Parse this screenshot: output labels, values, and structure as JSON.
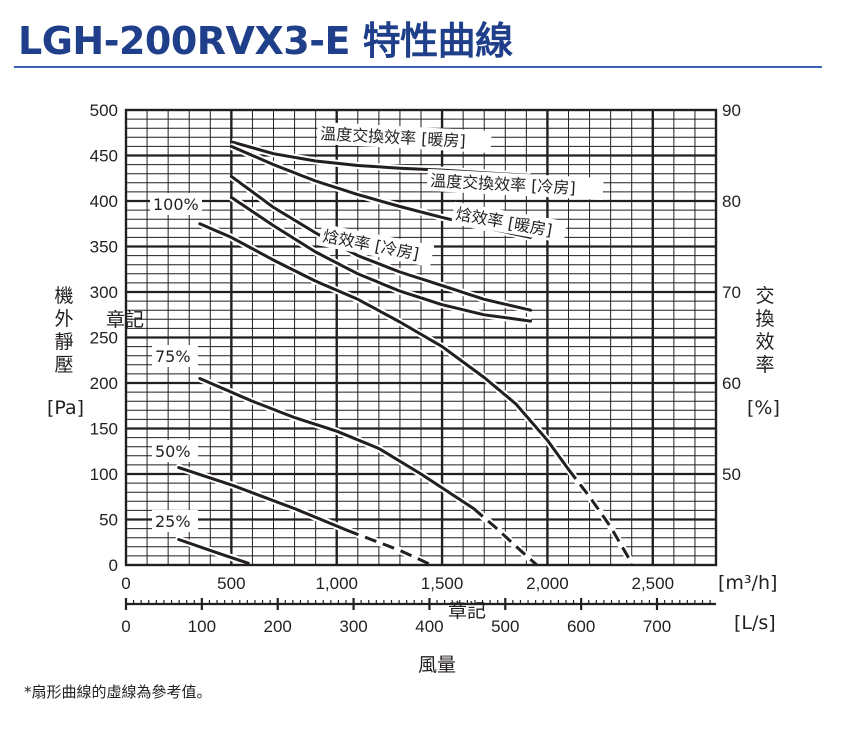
{
  "title": "LGH-200RVX3-E 特性曲線",
  "footnote": "*扇形曲線的虛線為參考值。",
  "stamps": [
    "章記",
    "章記"
  ],
  "chart_data": {
    "type": "line",
    "title": "LGH-200RVX3-E 特性曲線",
    "xlabel": "風量",
    "x_unit_primary": "[m³/h]",
    "x_unit_secondary": "[L/s]",
    "xlim": [
      0,
      2800
    ],
    "x_ticks": [
      "0",
      "500",
      "1,000",
      "1,500",
      "2,000",
      "2,500"
    ],
    "x_secondary_ticks": [
      "0",
      "100",
      "200",
      "300",
      "400",
      "500",
      "600",
      "700"
    ],
    "ylabel_left": "機外靜壓",
    "ylabel_left_unit": "[Pa]",
    "ylim_left": [
      0,
      500
    ],
    "y_ticks_left": [
      "0",
      "50",
      "100",
      "150",
      "200",
      "250",
      "300",
      "350",
      "400",
      "450",
      "500"
    ],
    "ylabel_right": "交換效率",
    "ylabel_right_unit": "[%]",
    "ylim_right": [
      40,
      90
    ],
    "y_ticks_right": [
      "50",
      "60",
      "70",
      "80",
      "90"
    ],
    "grid": true,
    "fan_curves": [
      {
        "label": "100%",
        "axis": "pressure",
        "solid": [
          [
            350,
            375
          ],
          [
            500,
            360
          ],
          [
            700,
            335
          ],
          [
            900,
            312
          ],
          [
            1100,
            292
          ],
          [
            1300,
            267
          ],
          [
            1500,
            240
          ],
          [
            1700,
            206
          ],
          [
            1850,
            177
          ],
          [
            2000,
            137
          ],
          [
            2100,
            105
          ]
        ],
        "dashed": [
          [
            2100,
            105
          ],
          [
            2200,
            75
          ],
          [
            2300,
            42
          ],
          [
            2400,
            2
          ]
        ]
      },
      {
        "label": "75%",
        "axis": "pressure",
        "solid": [
          [
            350,
            205
          ],
          [
            600,
            180
          ],
          [
            800,
            162
          ],
          [
            1000,
            147
          ],
          [
            1200,
            128
          ],
          [
            1400,
            100
          ],
          [
            1650,
            62
          ]
        ],
        "dashed": [
          [
            1650,
            62
          ],
          [
            1750,
            42
          ],
          [
            1900,
            10
          ],
          [
            1950,
            0
          ]
        ]
      },
      {
        "label": "50%",
        "axis": "pressure",
        "solid": [
          [
            250,
            107
          ],
          [
            500,
            88
          ],
          [
            800,
            62
          ],
          [
            1050,
            38
          ]
        ],
        "dashed": [
          [
            1050,
            38
          ],
          [
            1300,
            16
          ],
          [
            1450,
            0
          ]
        ]
      },
      {
        "label": "25%",
        "axis": "pressure",
        "solid": [
          [
            250,
            28
          ],
          [
            450,
            12
          ],
          [
            580,
            2
          ]
        ],
        "dashed": []
      }
    ],
    "efficiency_curves": [
      {
        "label": "溫度交換效率 [暖房]",
        "axis": "efficiency",
        "points": [
          [
            500,
            86.5
          ],
          [
            700,
            85.2
          ],
          [
            900,
            84.4
          ],
          [
            1100,
            83.9
          ],
          [
            1300,
            83.6
          ],
          [
            1500,
            83.4
          ],
          [
            1700,
            83.1
          ],
          [
            1920,
            82.8
          ]
        ]
      },
      {
        "label": "溫度交換效率 [冷房]",
        "axis": "efficiency",
        "points": [
          [
            500,
            86
          ],
          [
            700,
            84
          ],
          [
            900,
            82.2
          ],
          [
            1100,
            80.7
          ],
          [
            1300,
            79.4
          ],
          [
            1500,
            78.2
          ],
          [
            1700,
            77.1
          ],
          [
            1920,
            76
          ]
        ]
      },
      {
        "label": "焓效率 [暖房]",
        "axis": "efficiency",
        "points": [
          [
            500,
            82.7
          ],
          [
            700,
            79.3
          ],
          [
            900,
            76.5
          ],
          [
            1100,
            74
          ],
          [
            1300,
            72.2
          ],
          [
            1500,
            70.7
          ],
          [
            1700,
            69.2
          ],
          [
            1920,
            68
          ]
        ]
      },
      {
        "label": "焓效率 [冷房]",
        "axis": "efficiency",
        "points": [
          [
            500,
            80.4
          ],
          [
            700,
            77.3
          ],
          [
            900,
            74.4
          ],
          [
            1100,
            72
          ],
          [
            1300,
            70.1
          ],
          [
            1500,
            68.6
          ],
          [
            1700,
            67.5
          ],
          [
            1920,
            66.8
          ]
        ]
      }
    ]
  }
}
